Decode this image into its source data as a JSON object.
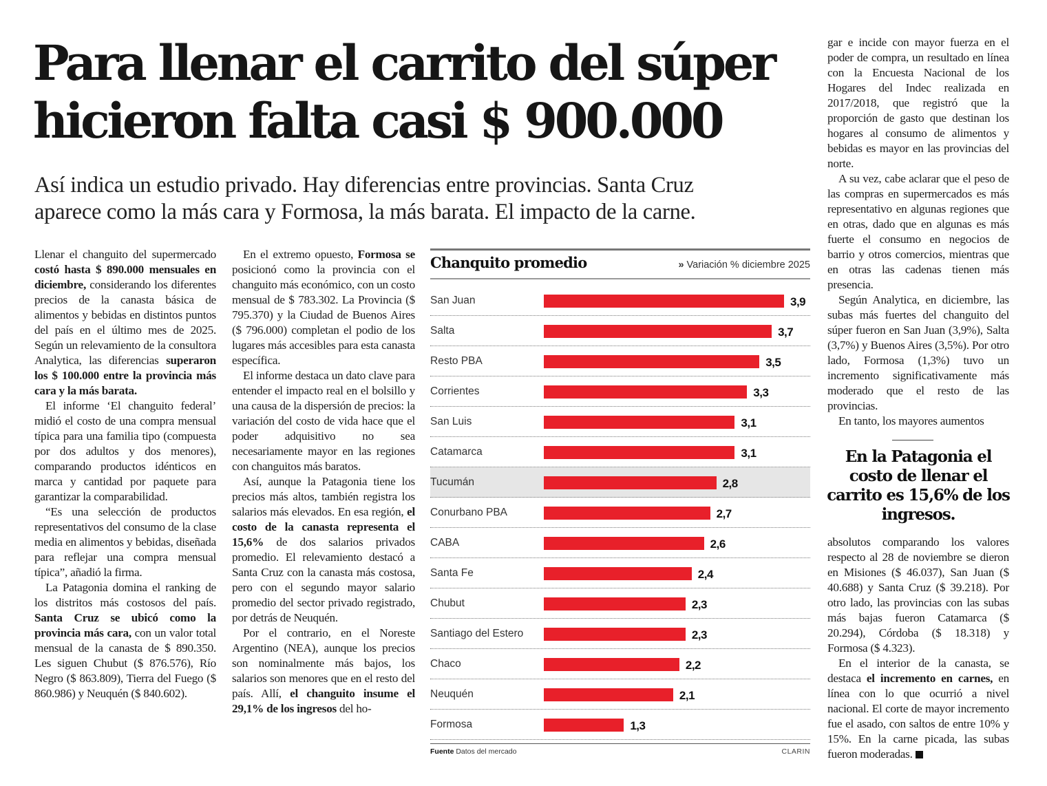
{
  "headline": [
    "Para llenar el carrito del súper",
    "hicieron falta casi $ 900.000"
  ],
  "deck": [
    "Así indica un estudio privado. Hay diferencias entre provincias. Santa Cruz",
    "aparece como la más cara y Formosa, la más barata. El impacto de la carne."
  ],
  "columns": {
    "c1": [
      {
        "indent": false,
        "segs": [
          [
            "Llenar el changuito del supermercado ",
            false
          ],
          [
            "costó hasta $ 890.000 mensuales en diciembre,",
            true
          ],
          [
            " considerando los diferentes precios de la canasta básica de alimentos y bebidas en distintos puntos del país en el último mes de 2025. Según un relevamiento de la consultora Analytica, las diferencias ",
            false
          ],
          [
            "superaron los $ 100.000 entre la provincia más cara y la más barata.",
            true
          ]
        ]
      },
      {
        "indent": true,
        "segs": [
          [
            "El informe ‘El changuito federal’ midió el costo de una compra mensual típica para una familia tipo (compuesta por dos adultos y dos menores), comparando productos idénticos en marca y cantidad por paquete para garantizar la comparabilidad.",
            false
          ]
        ]
      },
      {
        "indent": true,
        "segs": [
          [
            "“Es una selección de productos representativos del consumo de la clase media en alimentos y bebidas, diseñada para reflejar una compra mensual típica”, añadió la firma.",
            false
          ]
        ]
      },
      {
        "indent": true,
        "segs": [
          [
            "La Patagonia domina el ranking de los distritos más costosos del país. ",
            false
          ],
          [
            "Santa Cruz se ubicó como la provincia más cara,",
            true
          ],
          [
            " con un valor total mensual de la canasta de $ 890.350. Les siguen Chubut ($ 876.576), Río Negro ($ 863.809), Tierra del Fuego ($ 860.986) y Neuquén ($ 840.602).",
            false
          ]
        ]
      }
    ],
    "c2": [
      {
        "indent": true,
        "segs": [
          [
            "En el extremo opuesto, ",
            false
          ],
          [
            "Formosa se",
            true
          ],
          [
            " posicionó como la provincia con el changuito más económico, con un costo mensual de $ 783.302. La Provincia ($ 795.370) y la Ciudad de Buenos Aires ($ 796.000) completan el podio de los lugares más accesibles para esta canasta específica.",
            false
          ]
        ]
      },
      {
        "indent": true,
        "segs": [
          [
            "El informe destaca un dato clave para entender el impacto real en el bolsillo y una causa de la dispersión de precios: la variación del costo de vida hace que el poder adquisitivo no sea necesariamente mayor en las regiones con changuitos más baratos.",
            false
          ]
        ]
      },
      {
        "indent": true,
        "segs": [
          [
            "Así, aunque la Patagonia tiene los precios más altos, también registra los salarios más elevados. En esa región, ",
            false
          ],
          [
            "el costo de la canasta representa el 15,6%",
            true
          ],
          [
            " de dos salarios privados promedio. El relevamiento destacó a Santa Cruz con la canasta más costosa, pero con el segundo mayor salario promedio del sector privado registrado, por detrás de Neuquén.",
            false
          ]
        ]
      },
      {
        "indent": true,
        "segs": [
          [
            "Por el contrario, en el Noreste Argentino (NEA), aunque los precios son nominalmente más bajos, los salarios son menores que en el resto del país. Allí, ",
            false
          ],
          [
            "el changuito insume el 29,1% de los ingresos",
            true
          ],
          [
            " del ho-",
            false
          ]
        ]
      }
    ],
    "c4a": [
      {
        "indent": false,
        "segs": [
          [
            "gar e incide con mayor fuerza en el poder de compra, un resultado en línea con la Encuesta Nacional de los Hogares del Indec realizada en 2017/2018, que registró que la proporción de gasto que destinan los hogares al consumo de alimentos y bebidas es mayor en las provincias del norte.",
            false
          ]
        ]
      },
      {
        "indent": true,
        "segs": [
          [
            "A su vez, cabe aclarar que el peso de las compras en supermercados es más representativo en algunas regiones que en otras, dado que en algunas es más fuerte el consumo en negocios de barrio y otros comercios, mientras que en otras las cadenas tienen más presencia.",
            false
          ]
        ]
      },
      {
        "indent": true,
        "segs": [
          [
            "Según Analytica, en diciembre, las subas más fuertes del changuito del súper fueron en San Juan (3,9%), Salta (3,7%) y Buenos Aires (3,5%). Por otro lado, Formosa (1,3%) tuvo un incremento significativamente más moderado que el resto de las provincias.",
            false
          ]
        ]
      },
      {
        "indent": true,
        "segs": [
          [
            "En tanto, los mayores aumentos",
            false
          ]
        ]
      }
    ],
    "c4b": [
      {
        "indent": false,
        "segs": [
          [
            "absolutos comparando los valores respecto al 28 de noviembre se dieron en Misiones ($ 46.037), San Juan ($ 40.688) y Santa Cruz ($ 39.218). Por otro lado, las provincias con las subas más bajas fueron Catamarca ($ 20.294), Córdoba ($ 18.318) y Formosa ($ 4.323).",
            false
          ]
        ]
      },
      {
        "indent": true,
        "end": true,
        "segs": [
          [
            "En el interior de la canasta, se destaca ",
            false
          ],
          [
            "el incremento en carnes,",
            true
          ],
          [
            " en línea con lo que ocurrió a nivel nacional. El corte de mayor incremento fue el asado, con saltos de entre 10% y 15%. En la carne picada, las subas fueron moderadas.",
            false
          ]
        ]
      }
    ]
  },
  "pull_quote": "En la Patagonia el costo de llenar el carrito es 15,6% de los ingresos.",
  "chart_data": {
    "type": "bar",
    "orientation": "horizontal",
    "title": "Chanquito promedio",
    "subtitle_marker": "»",
    "subtitle": "Variación % diciembre 2025",
    "categories": [
      "San Juan",
      "Salta",
      "Resto PBA",
      "Corrientes",
      "San Luis",
      "Catamarca",
      "Tucumán",
      "Conurbano PBA",
      "CABA",
      "Santa Fe",
      "Chubut",
      "Santiago del Estero",
      "Chaco",
      "Neuquén",
      "Formosa"
    ],
    "values": [
      3.9,
      3.7,
      3.5,
      3.3,
      3.1,
      3.1,
      2.8,
      2.7,
      2.6,
      2.4,
      2.3,
      2.3,
      2.2,
      2.1,
      1.3
    ],
    "value_labels": [
      "3,9",
      "3,7",
      "3,5",
      "3,3",
      "3,1",
      "3,1",
      "2,8",
      "2,7",
      "2,6",
      "2,4",
      "2,3",
      "2,3",
      "2,2",
      "2,1",
      "1,3"
    ],
    "highlighted": "Tucumán",
    "bar_color": "#e8202a",
    "xlim": [
      0,
      3.9
    ],
    "source_label": "Fuente",
    "source": "Datos del mercado",
    "credit": "CLARIN"
  }
}
